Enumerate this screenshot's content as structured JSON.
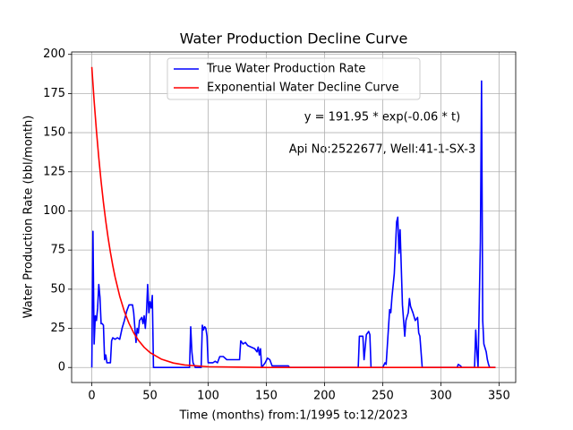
{
  "chart_data": {
    "type": "line",
    "title": "Water Production Decline Curve",
    "xlabel": "Time (months) from:1/1995 to:12/2023",
    "ylabel": "Water Production Rate (bbl/month)",
    "annotations": [
      "y = 191.95 * exp(-0.06 * t)",
      "Api No:2522677, Well:41-1-SX-3"
    ],
    "xlim": [
      -17.35,
      364.35
    ],
    "ylim": [
      -9.6,
      201.55
    ],
    "xticks": [
      0,
      50,
      100,
      150,
      200,
      250,
      300,
      350
    ],
    "yticks": [
      0,
      25,
      50,
      75,
      100,
      125,
      150,
      175,
      200
    ],
    "grid": true,
    "legend": "upper center",
    "series": [
      {
        "name": "True Water Production Rate",
        "color": "#0000ff",
        "x": [
          0,
          1,
          2,
          3,
          4,
          5,
          6,
          7,
          8,
          9,
          10,
          11,
          12,
          13,
          16,
          17,
          18,
          20,
          22,
          24,
          26,
          28,
          30,
          32,
          35,
          36,
          38,
          39,
          40,
          41,
          43,
          44,
          45,
          46,
          47,
          48,
          49,
          50,
          51,
          52,
          53,
          84,
          85,
          86,
          87,
          89,
          94,
          95,
          96,
          97,
          98,
          99,
          100,
          104,
          106,
          108,
          110,
          113,
          116,
          119,
          124,
          127,
          128,
          130,
          132,
          134,
          137,
          140,
          142,
          143,
          144,
          145,
          146,
          149,
          151,
          153,
          155,
          169,
          170,
          229,
          230,
          233,
          234,
          236,
          238,
          239,
          240,
          250,
          252,
          253,
          256,
          257,
          258,
          260,
          262,
          263,
          264,
          265,
          267,
          269,
          270,
          272,
          273,
          274,
          276,
          278,
          280,
          281,
          282,
          284,
          314,
          315,
          317,
          318,
          329,
          330,
          331,
          332,
          334,
          335,
          336,
          337,
          339,
          340,
          341,
          342,
          347
        ],
        "values": [
          0,
          87,
          15,
          33,
          30,
          38,
          53,
          45,
          28,
          28,
          27,
          5,
          8,
          3,
          3,
          17,
          19,
          18,
          19,
          18,
          25,
          30,
          36,
          40,
          40,
          35,
          16,
          25,
          22,
          30,
          32,
          28,
          33,
          25,
          35,
          53,
          35,
          42,
          38,
          46,
          0,
          0,
          26,
          10,
          3,
          0,
          0,
          27,
          24,
          26,
          25,
          20,
          3,
          3,
          4,
          3,
          7,
          7,
          5,
          5,
          5,
          5,
          17,
          15,
          16,
          14,
          13,
          12,
          10,
          13,
          8,
          12,
          0,
          3,
          6,
          5,
          1,
          1,
          0,
          0,
          20,
          20,
          5,
          21,
          23,
          21,
          0,
          0,
          3,
          2,
          37,
          35,
          45,
          60,
          93,
          96,
          73,
          88,
          40,
          20,
          30,
          35,
          44,
          39,
          35,
          30,
          32,
          22,
          20,
          0,
          0,
          2,
          1,
          0,
          0,
          24,
          10,
          0,
          80,
          183,
          30,
          15,
          10,
          5,
          2,
          0,
          0
        ]
      },
      {
        "name": "Exponential Water Decline Curve",
        "color": "#ff0000",
        "x": [
          0,
          2,
          4,
          6,
          8,
          10,
          12,
          14,
          16,
          18,
          20,
          24,
          28,
          32,
          36,
          40,
          45,
          50,
          60,
          70,
          80,
          100,
          150,
          200,
          347
        ],
        "values": [
          191.95,
          170.24,
          150.99,
          133.92,
          118.78,
          105.34,
          93.44,
          82.87,
          73.5,
          65.19,
          57.82,
          45.48,
          35.77,
          28.14,
          22.13,
          17.41,
          12.9,
          9.56,
          5.25,
          2.88,
          1.58,
          0.48,
          0.02,
          0,
          0
        ]
      }
    ]
  }
}
